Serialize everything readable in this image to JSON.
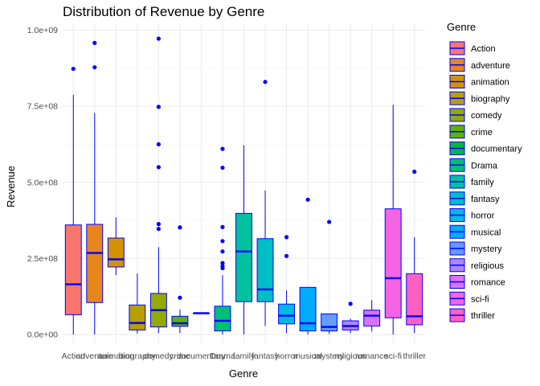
{
  "chart_data": {
    "type": "boxplot",
    "title": "Distribution of Revenue by Genre",
    "xlabel": "Genre",
    "ylabel": "Revenue",
    "ylim": [
      0,
      1000000000
    ],
    "yticks": [
      0,
      250000000,
      500000000,
      750000000,
      1000000000
    ],
    "ytick_labels": [
      "0.0e+00",
      "2.5e+08",
      "5.0e+08",
      "7.5e+08",
      "1.0e+09"
    ],
    "grid": true,
    "legend": {
      "title": "Genre",
      "position": "right"
    },
    "outline_color": "#0000ff",
    "categories": [
      {
        "name": "Action",
        "color": "#F8766D",
        "min": 0,
        "q1": 65000000,
        "median": 165000000,
        "q3": 360000000,
        "max": 788000000,
        "outliers": [
          873000000
        ]
      },
      {
        "name": "adventure",
        "color": "#E7861B",
        "min": 0,
        "q1": 105000000,
        "median": 268000000,
        "q3": 362000000,
        "max": 728000000,
        "outliers": [
          878000000,
          958000000
        ]
      },
      {
        "name": "animation",
        "color": "#D39200",
        "min": 195000000,
        "q1": 222000000,
        "median": 247000000,
        "q3": 317000000,
        "max": 385000000,
        "outliers": []
      },
      {
        "name": "biography",
        "color": "#B79F00",
        "min": 3000000,
        "q1": 15000000,
        "median": 38000000,
        "q3": 97000000,
        "max": 200000000,
        "outliers": []
      },
      {
        "name": "comedy",
        "color": "#93AA00",
        "min": 5000000,
        "q1": 25000000,
        "median": 80000000,
        "q3": 135000000,
        "max": 287000000,
        "outliers": [
          347000000,
          363000000,
          550000000,
          625000000,
          748000000,
          972000000
        ]
      },
      {
        "name": "crime",
        "color": "#5EB300",
        "min": 5000000,
        "q1": 27000000,
        "median": 37000000,
        "q3": 60000000,
        "max": 82000000,
        "outliers": [
          121000000,
          352000000
        ]
      },
      {
        "name": "documentary",
        "color": "#00BA38",
        "min": 70000000,
        "q1": 70000000,
        "median": 70000000,
        "q3": 70000000,
        "max": 70000000,
        "outliers": []
      },
      {
        "name": "Drama",
        "color": "#00BF74",
        "min": 0,
        "q1": 12000000,
        "median": 45000000,
        "q3": 93000000,
        "max": 195000000,
        "outliers": [
          218000000,
          225000000,
          235000000,
          273000000,
          307000000,
          353000000,
          548000000,
          610000000
        ]
      },
      {
        "name": "family",
        "color": "#00C19F",
        "min": 0,
        "q1": 108000000,
        "median": 273000000,
        "q3": 398000000,
        "max": 622000000,
        "outliers": []
      },
      {
        "name": "fantasy",
        "color": "#00BFC4",
        "min": 28000000,
        "q1": 108000000,
        "median": 148000000,
        "q3": 315000000,
        "max": 473000000,
        "outliers": [
          830000000
        ]
      },
      {
        "name": "horror",
        "color": "#00B9E3",
        "min": 5000000,
        "q1": 35000000,
        "median": 62000000,
        "q3": 100000000,
        "max": 145000000,
        "outliers": [
          258000000,
          320000000
        ]
      },
      {
        "name": "musical",
        "color": "#00ADFA",
        "min": 0,
        "q1": 12000000,
        "median": 37000000,
        "q3": 155000000,
        "max": 155000000,
        "outliers": [
          443000000
        ]
      },
      {
        "name": "mystery",
        "color": "#619CFF",
        "min": 2000000,
        "q1": 12000000,
        "median": 25000000,
        "q3": 68000000,
        "max": 68000000,
        "outliers": [
          370000000
        ]
      },
      {
        "name": "religious",
        "color": "#AE87FF",
        "min": 5000000,
        "q1": 15000000,
        "median": 28000000,
        "q3": 45000000,
        "max": 52000000,
        "outliers": [
          101000000
        ]
      },
      {
        "name": "romance",
        "color": "#DB72FB",
        "min": 10000000,
        "q1": 28000000,
        "median": 62000000,
        "q3": 80000000,
        "max": 113000000,
        "outliers": []
      },
      {
        "name": "sci-fi",
        "color": "#F564E3",
        "min": 0,
        "q1": 55000000,
        "median": 185000000,
        "q3": 413000000,
        "max": 755000000,
        "outliers": []
      },
      {
        "name": "thriller",
        "color": "#FF61C3",
        "min": 5000000,
        "q1": 32000000,
        "median": 60000000,
        "q3": 200000000,
        "max": 320000000,
        "outliers": [
          535000000
        ]
      }
    ]
  }
}
